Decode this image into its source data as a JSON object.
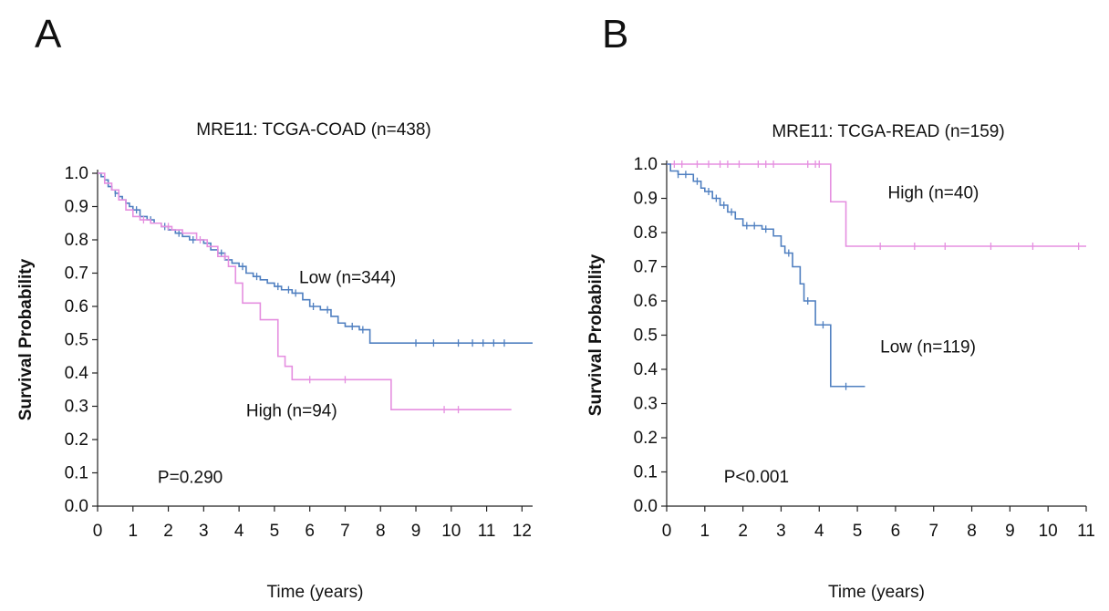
{
  "colors": {
    "low": "#4f7fc0",
    "high": "#e58fe0",
    "axis": "#222222"
  },
  "chart_data": [
    {
      "panel": "A",
      "type": "line",
      "title": "MRE11: TCGA-COAD (n=438)",
      "xlabel": "Time (years)",
      "ylabel": "Survival Probability",
      "xlim": [
        0,
        12.3
      ],
      "ylim": [
        0,
        1.0
      ],
      "x_ticks": [
        0,
        1,
        2,
        3,
        4,
        5,
        6,
        7,
        8,
        9,
        10,
        11,
        12
      ],
      "y_ticks": [
        0.0,
        0.1,
        0.2,
        0.3,
        0.4,
        0.5,
        0.6,
        0.7,
        0.8,
        0.9,
        1.0
      ],
      "annotations": [
        {
          "text": "Low (n=344)",
          "x": 5.7,
          "y": 0.67,
          "series": "Low"
        },
        {
          "text": "High (n=94)",
          "x": 4.2,
          "y": 0.27,
          "series": "High"
        },
        {
          "text": "P=0.290",
          "x": 1.7,
          "y": 0.07,
          "series": ""
        }
      ],
      "series": [
        {
          "name": "Low",
          "n": 344,
          "color_key": "low",
          "x": [
            0,
            0.1,
            0.2,
            0.3,
            0.4,
            0.5,
            0.6,
            0.7,
            0.8,
            0.9,
            1.0,
            1.2,
            1.4,
            1.6,
            1.8,
            2.0,
            2.2,
            2.4,
            2.6,
            2.8,
            3.0,
            3.2,
            3.4,
            3.6,
            3.8,
            4.0,
            4.2,
            4.4,
            4.6,
            4.8,
            5.0,
            5.2,
            5.5,
            5.8,
            6.0,
            6.3,
            6.6,
            6.8,
            7.0,
            7.4,
            7.7,
            8.0,
            9.0,
            10.0,
            11.0,
            12.3
          ],
          "y": [
            1.0,
            0.99,
            0.98,
            0.96,
            0.95,
            0.94,
            0.93,
            0.92,
            0.91,
            0.9,
            0.89,
            0.87,
            0.86,
            0.85,
            0.84,
            0.83,
            0.82,
            0.81,
            0.8,
            0.8,
            0.79,
            0.77,
            0.76,
            0.74,
            0.73,
            0.72,
            0.7,
            0.69,
            0.68,
            0.67,
            0.66,
            0.65,
            0.64,
            0.62,
            0.6,
            0.59,
            0.57,
            0.55,
            0.54,
            0.53,
            0.49,
            0.49,
            0.49,
            0.49,
            0.49,
            0.49
          ],
          "censor_x": [
            0.5,
            1.1,
            1.5,
            1.9,
            2.3,
            2.7,
            3.1,
            3.5,
            4.1,
            4.5,
            5.1,
            5.4,
            5.6,
            6.1,
            6.5,
            7.2,
            7.5,
            9.0,
            9.5,
            10.2,
            10.6,
            10.9,
            11.2,
            11.5
          ]
        },
        {
          "name": "High",
          "n": 94,
          "color_key": "high",
          "x": [
            0,
            0.2,
            0.4,
            0.6,
            0.8,
            1.0,
            1.2,
            1.5,
            1.8,
            2.1,
            2.4,
            2.8,
            3.1,
            3.4,
            3.7,
            3.9,
            4.1,
            4.6,
            5.1,
            5.3,
            5.5,
            8.3,
            11.7
          ],
          "y": [
            1.0,
            0.97,
            0.95,
            0.92,
            0.89,
            0.87,
            0.86,
            0.85,
            0.84,
            0.83,
            0.82,
            0.8,
            0.78,
            0.75,
            0.72,
            0.67,
            0.61,
            0.56,
            0.45,
            0.42,
            0.38,
            0.29,
            0.29
          ],
          "censor_x": [
            1.3,
            2.0,
            2.9,
            3.6,
            6.0,
            7.0,
            9.8,
            10.2
          ]
        }
      ]
    },
    {
      "panel": "B",
      "type": "line",
      "title": "MRE11: TCGA-READ (n=159)",
      "xlabel": "Time (years)",
      "ylabel": "Survival Probability",
      "xlim": [
        0,
        11
      ],
      "ylim": [
        0,
        1.0
      ],
      "x_ticks": [
        0,
        1,
        2,
        3,
        4,
        5,
        6,
        7,
        8,
        9,
        10,
        11
      ],
      "y_ticks": [
        0.0,
        0.1,
        0.2,
        0.3,
        0.4,
        0.5,
        0.6,
        0.7,
        0.8,
        0.9,
        1.0
      ],
      "annotations": [
        {
          "text": "High (n=40)",
          "x": 5.8,
          "y": 0.9,
          "series": "High"
        },
        {
          "text": "Low (n=119)",
          "x": 5.6,
          "y": 0.45,
          "series": "Low"
        },
        {
          "text": "P<0.001",
          "x": 1.5,
          "y": 0.07,
          "series": ""
        }
      ],
      "series": [
        {
          "name": "High",
          "n": 40,
          "color_key": "high",
          "x": [
            0,
            4.3,
            4.7,
            11.0
          ],
          "y": [
            1.0,
            0.89,
            0.76,
            0.76
          ],
          "censor_x": [
            0.2,
            0.4,
            0.8,
            1.1,
            1.4,
            1.6,
            1.9,
            2.4,
            2.6,
            2.8,
            3.7,
            3.9,
            4.0,
            5.6,
            6.5,
            7.3,
            8.5,
            9.6,
            10.8
          ]
        },
        {
          "name": "Low",
          "n": 119,
          "color_key": "low",
          "x": [
            0,
            0.1,
            0.3,
            0.7,
            0.9,
            1.0,
            1.2,
            1.4,
            1.6,
            1.8,
            2.0,
            2.5,
            2.8,
            3.0,
            3.1,
            3.3,
            3.5,
            3.6,
            3.9,
            4.3,
            5.2
          ],
          "y": [
            1.0,
            0.98,
            0.97,
            0.95,
            0.93,
            0.92,
            0.9,
            0.88,
            0.86,
            0.84,
            0.82,
            0.81,
            0.79,
            0.76,
            0.74,
            0.7,
            0.65,
            0.6,
            0.53,
            0.35,
            0.35
          ],
          "censor_x": [
            0.3,
            0.5,
            0.8,
            1.1,
            1.3,
            1.5,
            1.7,
            2.1,
            2.3,
            2.6,
            3.2,
            3.7,
            4.1,
            4.7
          ]
        }
      ]
    }
  ]
}
